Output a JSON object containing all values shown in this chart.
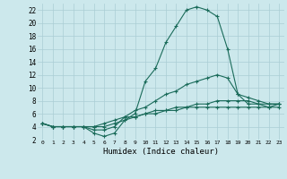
{
  "xlabel": "Humidex (Indice chaleur)",
  "background_color": "#cce8ec",
  "grid_color": "#aacdd4",
  "line_color": "#1a6b5a",
  "xlim": [
    -0.5,
    23.5
  ],
  "ylim": [
    2,
    23
  ],
  "yticks": [
    2,
    4,
    6,
    8,
    10,
    12,
    14,
    16,
    18,
    20,
    22
  ],
  "xticks": [
    0,
    1,
    2,
    3,
    4,
    5,
    6,
    7,
    8,
    9,
    10,
    11,
    12,
    13,
    14,
    15,
    16,
    17,
    18,
    19,
    20,
    21,
    22,
    23
  ],
  "lines": [
    {
      "x": [
        0,
        1,
        2,
        3,
        4,
        5,
        6,
        7,
        8,
        9,
        10,
        11,
        12,
        13,
        14,
        15,
        16,
        17,
        18,
        19,
        20,
        21,
        22,
        23
      ],
      "y": [
        4.5,
        4.0,
        4.0,
        4.0,
        4.0,
        3.0,
        2.5,
        3.0,
        5.0,
        6.0,
        11.0,
        13.0,
        17.0,
        19.5,
        22.0,
        22.5,
        22.0,
        21.0,
        16.0,
        9.0,
        7.5,
        7.5,
        7.0,
        7.5
      ]
    },
    {
      "x": [
        0,
        1,
        2,
        3,
        4,
        5,
        6,
        7,
        8,
        9,
        10,
        11,
        12,
        13,
        14,
        15,
        16,
        17,
        18,
        19,
        20,
        21,
        22,
        23
      ],
      "y": [
        4.5,
        4.0,
        4.0,
        4.0,
        4.0,
        3.5,
        3.5,
        4.0,
        5.5,
        6.5,
        7.0,
        8.0,
        9.0,
        9.5,
        10.5,
        11.0,
        11.5,
        12.0,
        11.5,
        9.0,
        8.5,
        8.0,
        7.5,
        7.5
      ]
    },
    {
      "x": [
        0,
        1,
        2,
        3,
        4,
        5,
        6,
        7,
        8,
        9,
        10,
        11,
        12,
        13,
        14,
        15,
        16,
        17,
        18,
        19,
        20,
        21,
        22,
        23
      ],
      "y": [
        4.5,
        4.0,
        4.0,
        4.0,
        4.0,
        4.0,
        4.0,
        4.5,
        5.0,
        5.5,
        6.0,
        6.5,
        6.5,
        7.0,
        7.0,
        7.5,
        7.5,
        8.0,
        8.0,
        8.0,
        8.0,
        7.5,
        7.5,
        7.5
      ]
    },
    {
      "x": [
        0,
        1,
        2,
        3,
        4,
        5,
        6,
        7,
        8,
        9,
        10,
        11,
        12,
        13,
        14,
        15,
        16,
        17,
        18,
        19,
        20,
        21,
        22,
        23
      ],
      "y": [
        4.5,
        4.0,
        4.0,
        4.0,
        4.0,
        4.0,
        4.5,
        5.0,
        5.5,
        5.5,
        6.0,
        6.0,
        6.5,
        6.5,
        7.0,
        7.0,
        7.0,
        7.0,
        7.0,
        7.0,
        7.0,
        7.0,
        7.0,
        7.0
      ]
    }
  ]
}
